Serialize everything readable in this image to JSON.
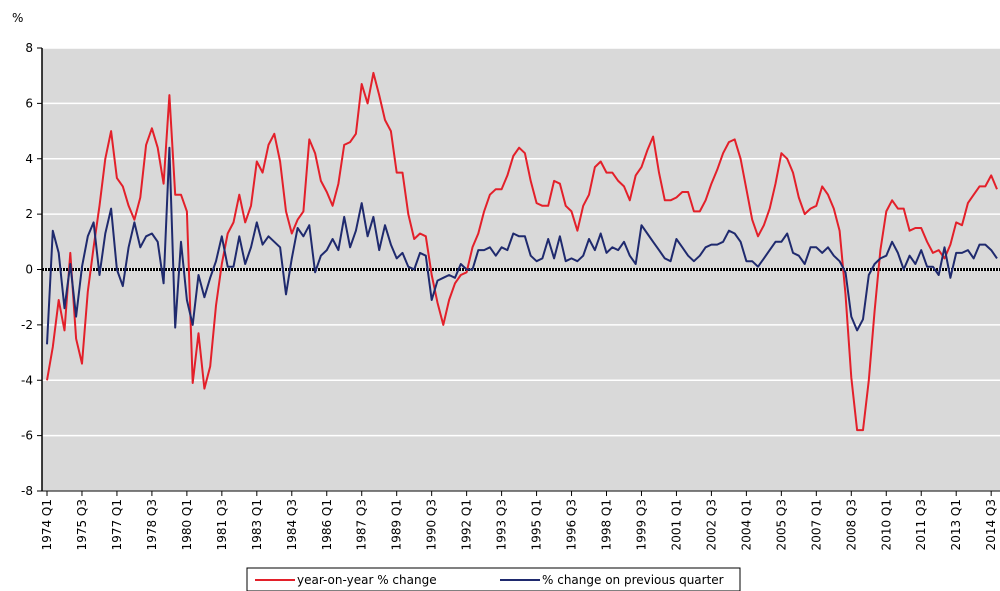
{
  "chart_data": {
    "type": "line",
    "y_label": "%",
    "categories": [
      "1974 Q1",
      null,
      null,
      null,
      null,
      null,
      "1975 Q3",
      null,
      null,
      null,
      null,
      null,
      "1977 Q1",
      null,
      null,
      null,
      null,
      null,
      "1978 Q3",
      null,
      null,
      null,
      null,
      null,
      "1980 Q1",
      null,
      null,
      null,
      null,
      null,
      "1981 Q3",
      null,
      null,
      null,
      null,
      null,
      "1983 Q1",
      null,
      null,
      null,
      null,
      null,
      "1984 Q3",
      null,
      null,
      null,
      null,
      null,
      "1986 Q1",
      null,
      null,
      null,
      null,
      null,
      "1987 Q3",
      null,
      null,
      null,
      null,
      null,
      "1989 Q1",
      null,
      null,
      null,
      null,
      null,
      "1990 Q3",
      null,
      null,
      null,
      null,
      null,
      "1992 Q1",
      null,
      null,
      null,
      null,
      null,
      "1993 Q3",
      null,
      null,
      null,
      null,
      null,
      "1995 Q1",
      null,
      null,
      null,
      null,
      null,
      "1996 Q3",
      null,
      null,
      null,
      null,
      null,
      "1998 Q1",
      null,
      null,
      null,
      null,
      null,
      "1999 Q3",
      null,
      null,
      null,
      null,
      null,
      "2001 Q1",
      null,
      null,
      null,
      null,
      null,
      "2002 Q3",
      null,
      null,
      null,
      null,
      null,
      "2004 Q1",
      null,
      null,
      null,
      null,
      null,
      "2005 Q3",
      null,
      null,
      null,
      null,
      null,
      "2007 Q1",
      null,
      null,
      null,
      null,
      null,
      "2008 Q3",
      null,
      null,
      null,
      null,
      null,
      "2010 Q1",
      null,
      null,
      null,
      null,
      null,
      "2011 Q3",
      null,
      null,
      null,
      null,
      null,
      "2013 Q1",
      null,
      null,
      null,
      null,
      null,
      "2014 Q3",
      null
    ],
    "series": [
      {
        "name": "year-on-year % change",
        "color": "#e3202a",
        "values": [
          -4.0,
          -2.8,
          -1.1,
          -2.2,
          0.6,
          -2.5,
          -3.4,
          -0.8,
          0.8,
          2.3,
          4.0,
          5.0,
          3.3,
          3.0,
          2.3,
          1.8,
          2.6,
          4.5,
          5.1,
          4.4,
          3.1,
          6.3,
          2.7,
          2.7,
          2.1,
          -4.1,
          -2.3,
          -4.3,
          -3.5,
          -1.3,
          0.2,
          1.3,
          1.7,
          2.7,
          1.7,
          2.3,
          3.9,
          3.5,
          4.5,
          4.9,
          3.9,
          2.1,
          1.3,
          1.8,
          2.1,
          4.7,
          4.2,
          3.2,
          2.8,
          2.3,
          3.1,
          4.5,
          4.6,
          4.9,
          6.7,
          6.0,
          7.1,
          6.3,
          5.4,
          5.0,
          3.5,
          3.5,
          2.0,
          1.1,
          1.3,
          1.2,
          -0.2,
          -1.2,
          -2.0,
          -1.1,
          -0.5,
          -0.2,
          -0.1,
          0.8,
          1.3,
          2.1,
          2.7,
          2.9,
          2.9,
          3.4,
          4.1,
          4.4,
          4.2,
          3.2,
          2.4,
          2.3,
          2.3,
          3.2,
          3.1,
          2.3,
          2.1,
          1.4,
          2.3,
          2.7,
          3.7,
          3.9,
          3.5,
          3.5,
          3.2,
          3.0,
          2.5,
          3.4,
          3.7,
          4.3,
          4.8,
          3.5,
          2.5,
          2.5,
          2.6,
          2.8,
          2.8,
          2.1,
          2.1,
          2.5,
          3.1,
          3.6,
          4.2,
          4.6,
          4.7,
          4.0,
          2.9,
          1.8,
          1.2,
          1.6,
          2.2,
          3.1,
          4.2,
          4.0,
          3.5,
          2.6,
          2.0,
          2.2,
          2.3,
          3.0,
          2.7,
          2.2,
          1.4,
          -0.9,
          -3.9,
          -5.8,
          -5.8,
          -4.0,
          -1.5,
          0.7,
          2.1,
          2.5,
          2.2,
          2.2,
          1.4,
          1.5,
          1.5,
          1.0,
          0.6,
          0.7,
          0.4,
          0.9,
          1.7,
          1.6,
          2.4,
          2.7,
          3.0,
          3.0,
          3.4,
          2.9
        ]
      },
      {
        "name": "% change on previous quarter",
        "color": "#1f2a6e",
        "values": [
          -2.7,
          1.4,
          0.6,
          -1.4,
          0.2,
          -1.7,
          0.1,
          1.2,
          1.7,
          -0.2,
          1.3,
          2.2,
          0.0,
          -0.6,
          0.8,
          1.7,
          0.8,
          1.2,
          1.3,
          1.0,
          -0.5,
          4.4,
          -2.1,
          1.0,
          -1.1,
          -2.0,
          -0.2,
          -1.0,
          -0.3,
          0.3,
          1.2,
          0.1,
          0.1,
          1.2,
          0.2,
          0.8,
          1.7,
          0.9,
          1.2,
          1.0,
          0.8,
          -0.9,
          0.4,
          1.5,
          1.2,
          1.6,
          -0.1,
          0.5,
          0.7,
          1.1,
          0.7,
          1.9,
          0.8,
          1.4,
          2.4,
          1.2,
          1.9,
          0.7,
          1.6,
          0.9,
          0.4,
          0.6,
          0.1,
          0.0,
          0.6,
          0.5,
          -1.1,
          -0.4,
          -0.3,
          -0.2,
          -0.3,
          0.2,
          0.0,
          0.0,
          0.7,
          0.7,
          0.8,
          0.5,
          0.8,
          0.7,
          1.3,
          1.2,
          1.2,
          0.5,
          0.3,
          0.4,
          1.1,
          0.4,
          1.2,
          0.3,
          0.4,
          0.3,
          0.5,
          1.1,
          0.7,
          1.3,
          0.6,
          0.8,
          0.7,
          1.0,
          0.5,
          0.2,
          1.6,
          1.3,
          1.0,
          0.7,
          0.4,
          0.3,
          1.1,
          0.8,
          0.5,
          0.3,
          0.5,
          0.8,
          0.9,
          0.9,
          1.0,
          1.4,
          1.3,
          1.0,
          0.3,
          0.3,
          0.1,
          0.4,
          0.7,
          1.0,
          1.0,
          1.3,
          0.6,
          0.5,
          0.2,
          0.8,
          0.8,
          0.6,
          0.8,
          0.5,
          0.3,
          -0.1,
          -1.7,
          -2.2,
          -1.8,
          -0.2,
          0.2,
          0.4,
          0.5,
          1.0,
          0.6,
          0.0,
          0.5,
          0.2,
          0.7,
          0.1,
          0.1,
          -0.2,
          0.8,
          -0.3,
          0.6,
          0.6,
          0.7,
          0.4,
          0.9,
          0.9,
          0.7,
          0.4
        ]
      }
    ],
    "ylim": [
      -8,
      8
    ],
    "yticks": [
      -8,
      -6,
      -4,
      -2,
      0,
      2,
      4,
      6,
      8
    ],
    "grid": true,
    "legend": "bottom"
  }
}
